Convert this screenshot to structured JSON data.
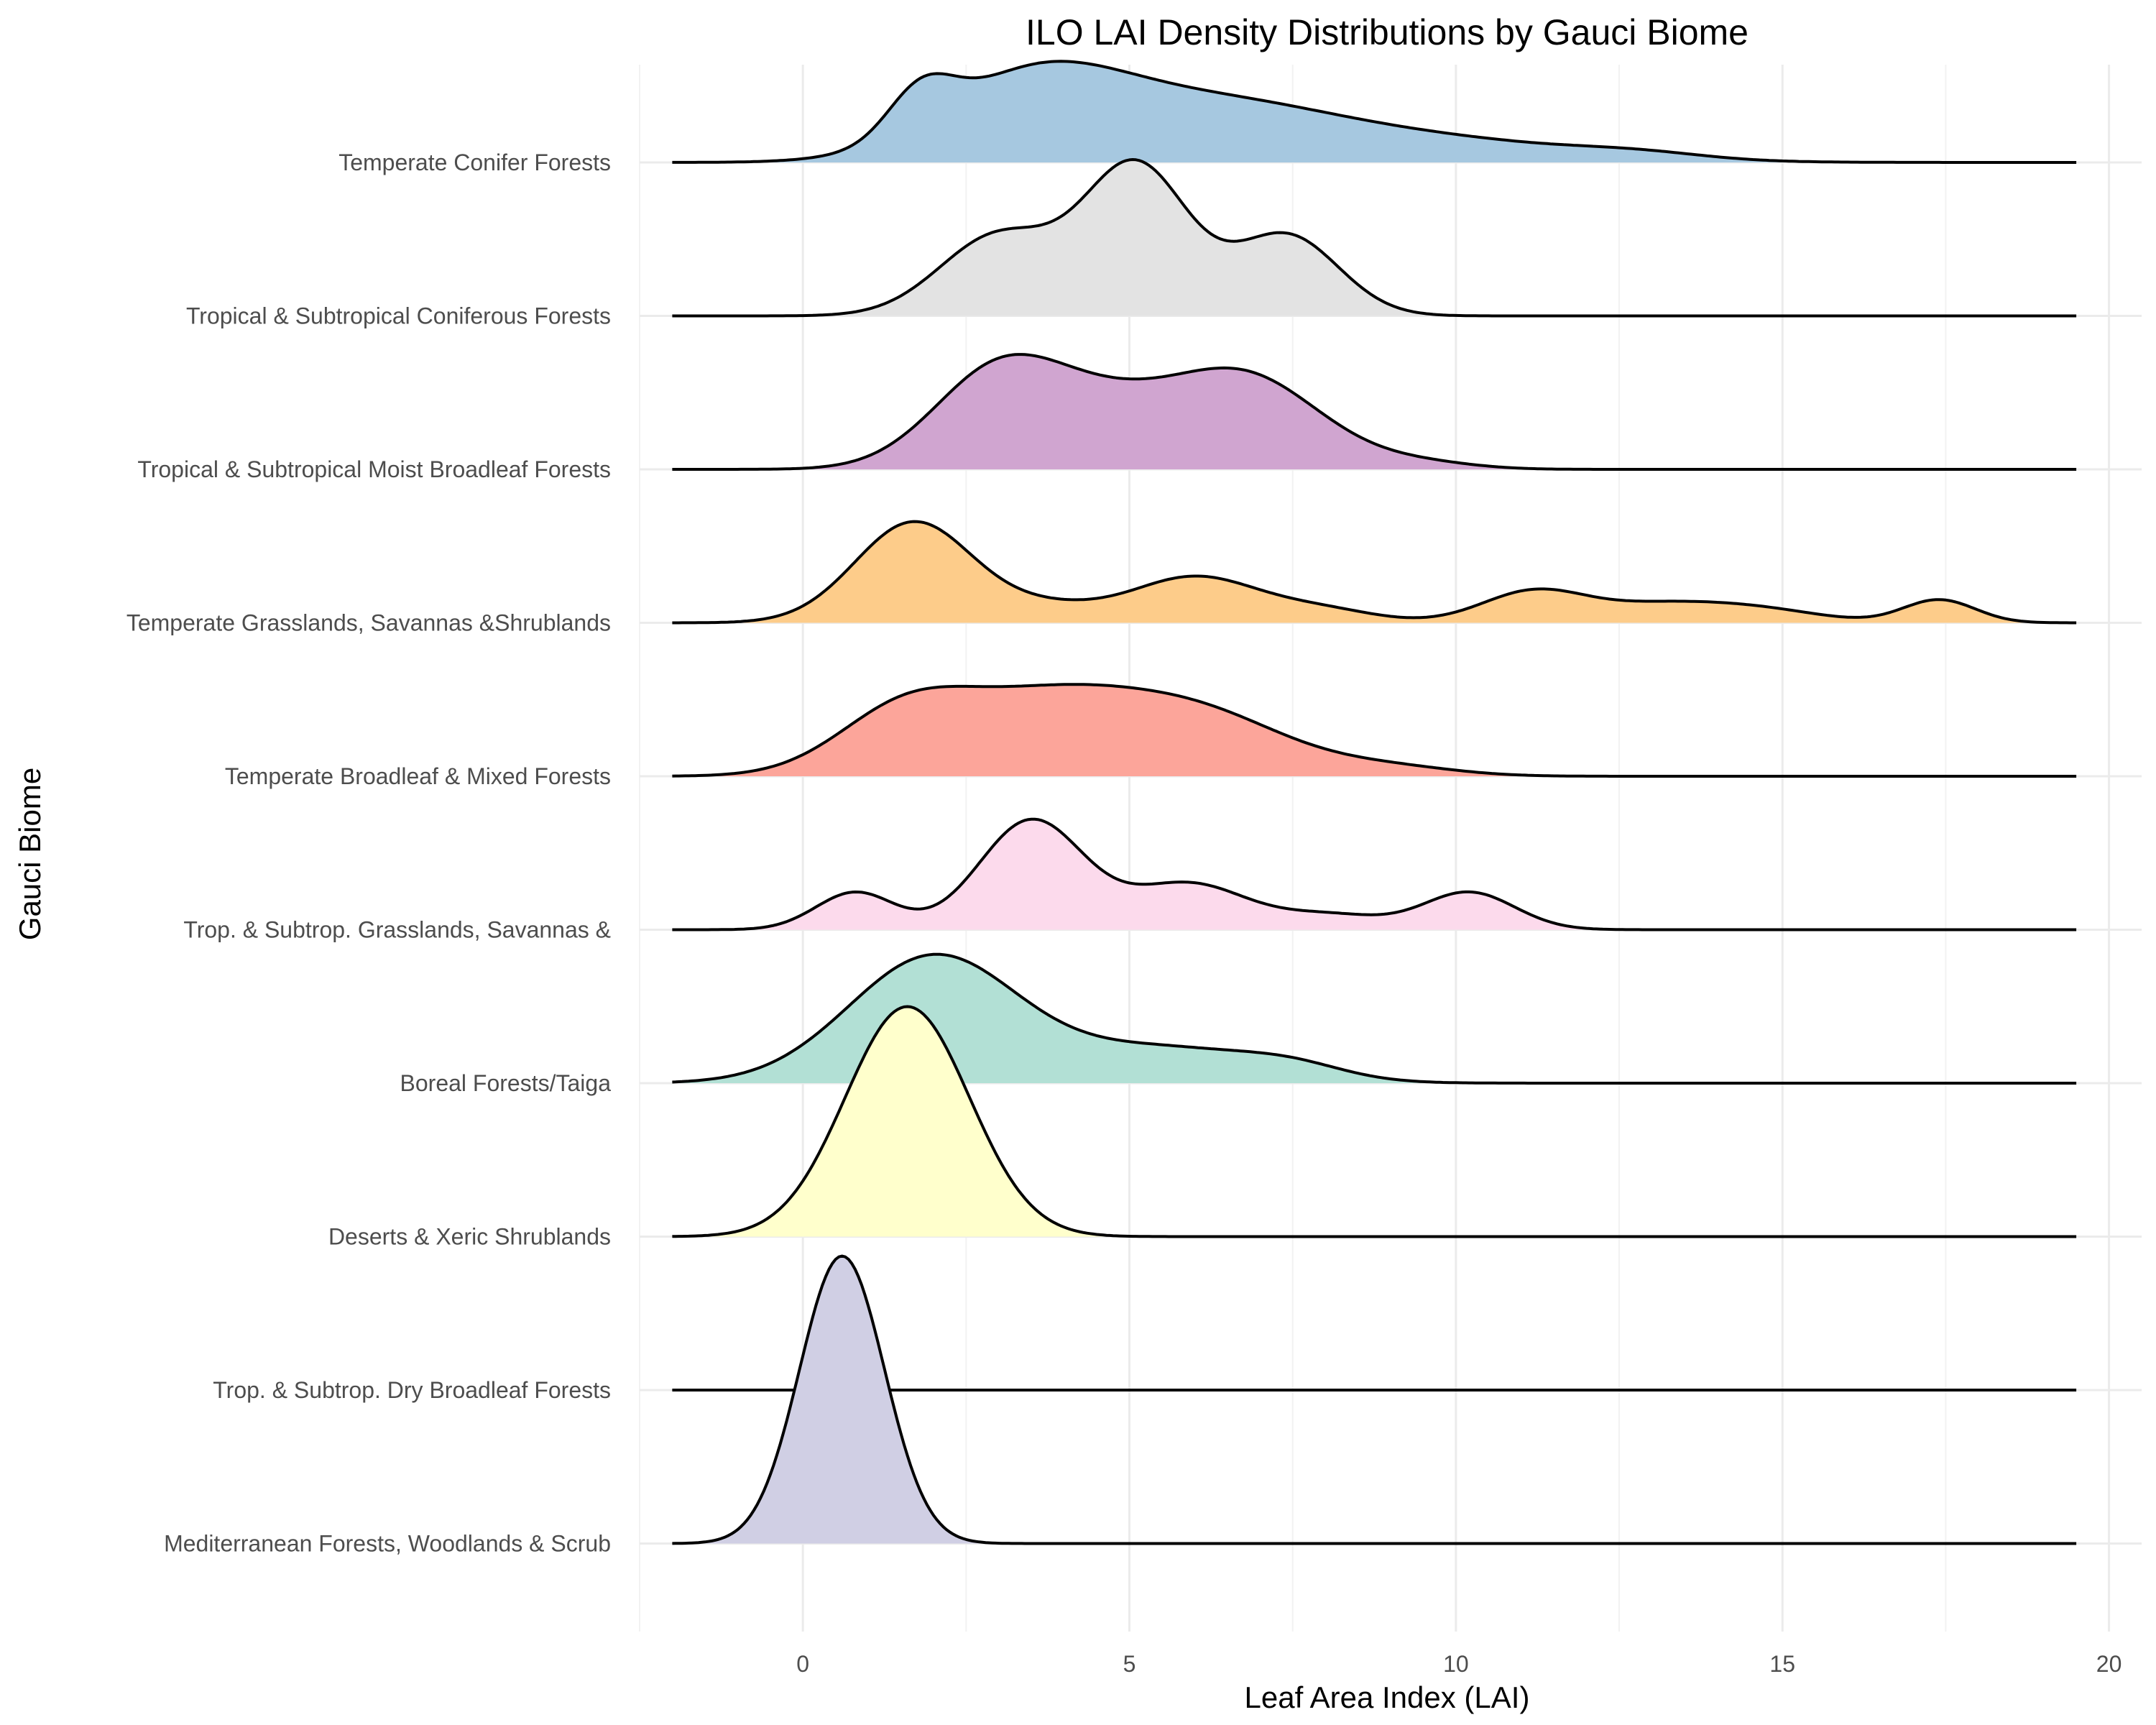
{
  "chart_data": {
    "type": "ridgeline",
    "title": "ILO LAI Density Distributions by Gauci Biome",
    "xlabel": "Leaf Area Index (LAI)",
    "ylabel": "Gauci Biome",
    "xlim": [
      -2.5,
      20.5
    ],
    "x_ticks": [
      0,
      5,
      10,
      15,
      20
    ],
    "x_tick_labels": [
      "0",
      "5",
      "10",
      "15",
      "20"
    ],
    "density_range": [
      -2,
      19.5
    ],
    "grid": true,
    "categories": [
      "Temperate Conifer Forests",
      "Tropical & Subtropical Coniferous Forests",
      "Tropical & Subtropical Moist Broadleaf Forests",
      "Temperate Grasslands, Savannas &Shrublands",
      "Temperate Broadleaf & Mixed Forests",
      "Trop. & Subtrop. Grasslands, Savannas &",
      "Boreal Forests/Taiga",
      "Deserts & Xeric Shrublands",
      "Trop. & Subtrop. Dry Broadleaf Forests",
      "Mediterranean Forests, Woodlands & Scrub"
    ],
    "series": [
      {
        "category": "Temperate Conifer Forests",
        "color": "#a6c8e0",
        "peaks": [
          [
            1.8,
            0.15,
            0.5
          ],
          [
            3.5,
            0.28,
            1.4
          ],
          [
            6.2,
            0.18,
            1.8
          ],
          [
            9.5,
            0.08,
            2.2
          ],
          [
            12.8,
            0.02,
            1.0
          ]
        ]
      },
      {
        "category": "Tropical & Subtropical Coniferous Forests",
        "color": "#e3e3e3",
        "peaks": [
          [
            3.0,
            0.28,
            0.9
          ],
          [
            5.1,
            0.52,
            0.8
          ],
          [
            7.4,
            0.28,
            0.8
          ]
        ]
      },
      {
        "category": "Tropical & Subtropical Moist Broadleaf Forests",
        "color": "#d0a5d0",
        "peaks": [
          [
            3.0,
            0.34,
            1.0
          ],
          [
            4.6,
            0.16,
            1.0
          ],
          [
            6.7,
            0.33,
            1.2
          ],
          [
            9.5,
            0.02,
            0.8
          ]
        ]
      },
      {
        "category": "Temperate Grasslands, Savannas &Shrublands",
        "color": "#fdcc8a",
        "peaks": [
          [
            1.7,
            0.35,
            0.9
          ],
          [
            3.7,
            0.05,
            0.8
          ],
          [
            6.0,
            0.16,
            1.0
          ],
          [
            8.0,
            0.04,
            0.8
          ],
          [
            11.2,
            0.11,
            0.8
          ],
          [
            13.0,
            0.05,
            0.9
          ],
          [
            14.5,
            0.05,
            1.0
          ],
          [
            17.4,
            0.08,
            0.55
          ]
        ]
      },
      {
        "category": "Temperate Broadleaf & Mixed Forests",
        "color": "#fca59a",
        "peaks": [
          [
            1.5,
            0.18,
            1.0
          ],
          [
            3.8,
            0.28,
            1.6
          ],
          [
            6.3,
            0.16,
            1.3
          ],
          [
            9.0,
            0.03,
            1.0
          ]
        ]
      },
      {
        "category": "Trop. & Subtrop. Grasslands, Savannas &",
        "color": "#fcdaec",
        "peaks": [
          [
            0.8,
            0.13,
            0.6
          ],
          [
            3.5,
            0.38,
            0.8
          ],
          [
            5.9,
            0.16,
            0.9
          ],
          [
            8.1,
            0.05,
            0.8
          ],
          [
            10.2,
            0.13,
            0.7
          ]
        ]
      },
      {
        "category": "Boreal Forests/Taiga",
        "color": "#b2e0d5",
        "peaks": [
          [
            2.0,
            0.44,
            1.3
          ],
          [
            5.5,
            0.12,
            1.5
          ],
          [
            7.5,
            0.04,
            0.8
          ]
        ]
      },
      {
        "category": "Deserts & Xeric Shrublands",
        "color": "#ffffcc",
        "peaks": [
          [
            1.6,
            0.8,
            0.95
          ]
        ]
      },
      {
        "category": "Trop. & Subtrop. Dry Broadleaf Forests",
        "color": "#fdd0a2",
        "peaks": []
      },
      {
        "category": "Mediterranean Forests, Woodlands & Scrub",
        "color": "#d0cfe4",
        "peaks": [
          [
            0.6,
            1.0,
            0.65
          ]
        ]
      }
    ]
  }
}
